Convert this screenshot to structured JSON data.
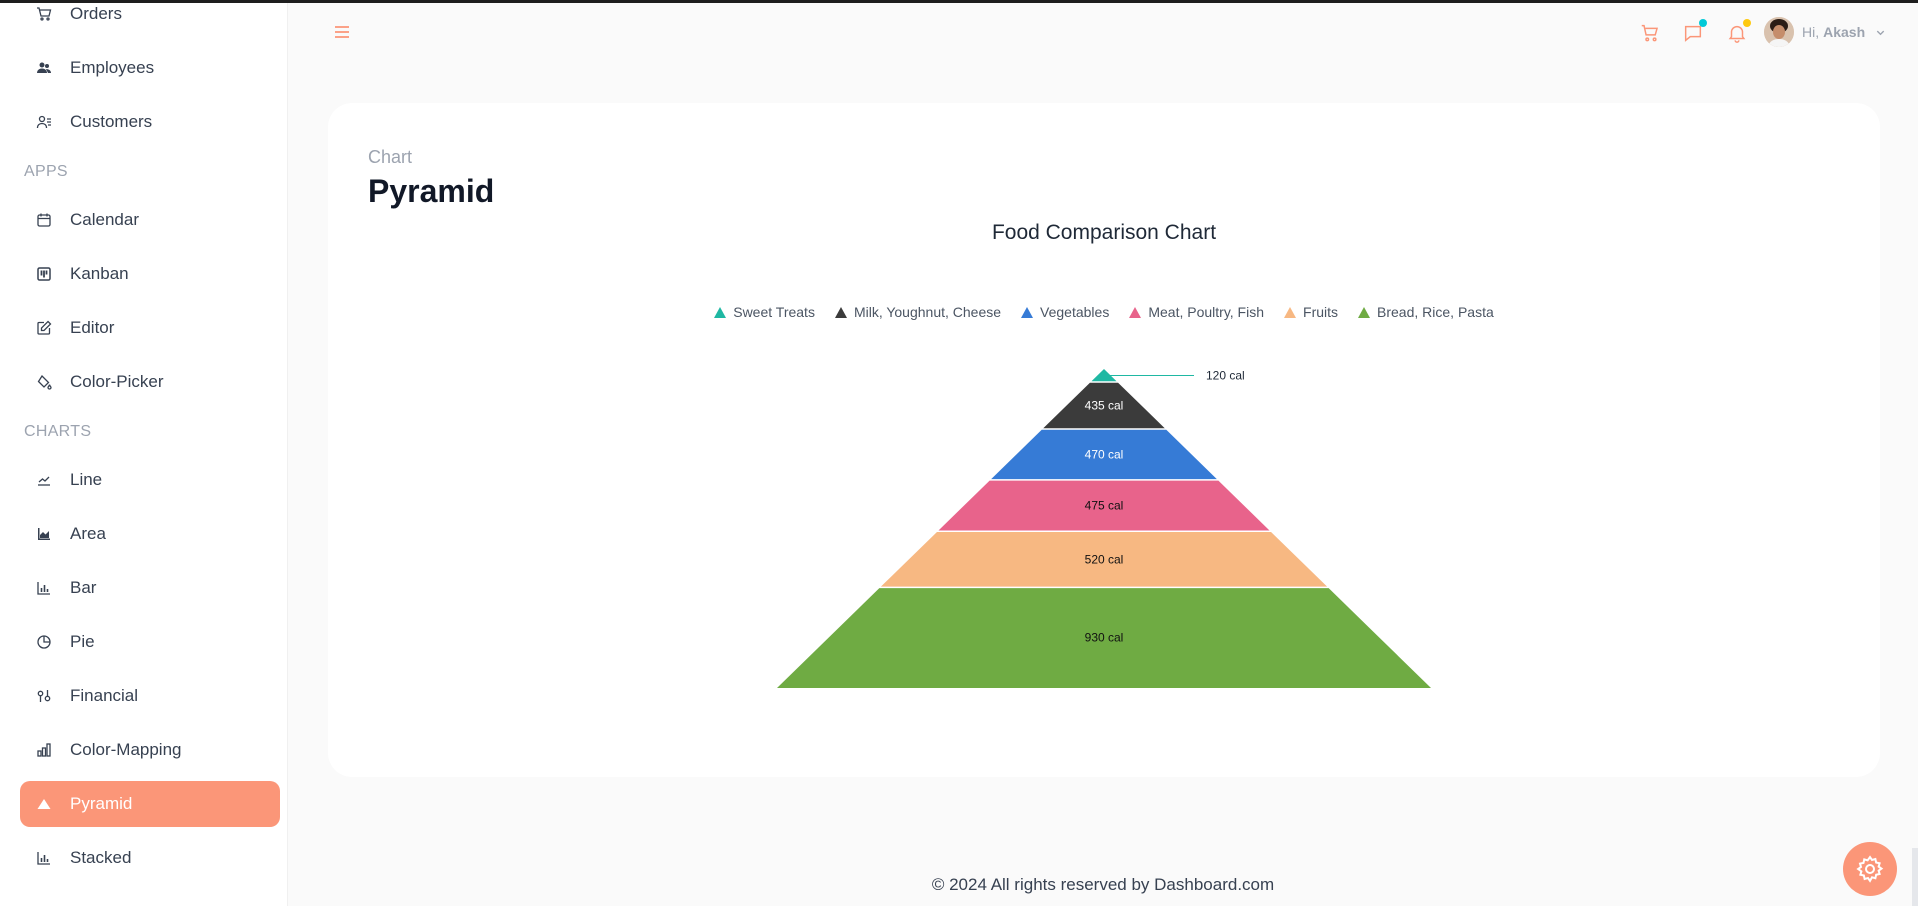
{
  "sidebar": {
    "items_top": [
      {
        "name": "orders",
        "label": "Orders",
        "icon": "cart-icon"
      },
      {
        "name": "employees",
        "label": "Employees",
        "icon": "employees-icon"
      },
      {
        "name": "customers",
        "label": "Customers",
        "icon": "customers-icon"
      }
    ],
    "apps_heading": "APPS",
    "apps": [
      {
        "name": "calendar",
        "label": "Calendar",
        "icon": "calendar-icon"
      },
      {
        "name": "kanban",
        "label": "Kanban",
        "icon": "kanban-icon"
      },
      {
        "name": "editor",
        "label": "Editor",
        "icon": "edit-icon"
      },
      {
        "name": "color-picker",
        "label": "Color-Picker",
        "icon": "paint-bucket-icon"
      }
    ],
    "charts_heading": "CHARTS",
    "charts": [
      {
        "name": "line",
        "label": "Line",
        "icon": "line-chart-icon"
      },
      {
        "name": "area",
        "label": "Area",
        "icon": "area-chart-icon"
      },
      {
        "name": "bar",
        "label": "Bar",
        "icon": "bar-chart-icon"
      },
      {
        "name": "pie",
        "label": "Pie",
        "icon": "pie-chart-icon"
      },
      {
        "name": "financial",
        "label": "Financial",
        "icon": "financial-icon"
      },
      {
        "name": "color-mapping",
        "label": "Color-Mapping",
        "icon": "color-mapping-icon"
      },
      {
        "name": "pyramid",
        "label": "Pyramid",
        "icon": "pyramid-icon",
        "active": true
      },
      {
        "name": "stacked",
        "label": "Stacked",
        "icon": "stacked-chart-icon"
      }
    ]
  },
  "header": {
    "user_greeting": "Hi,",
    "user_name": "Akash",
    "icons": [
      "menu-icon",
      "cart-icon",
      "chat-icon",
      "bell-icon",
      "chevron-down-icon"
    ]
  },
  "page": {
    "crumb": "Chart",
    "title": "Pyramid"
  },
  "chart_data": {
    "type": "pyramid",
    "title": "Food Comparison Chart",
    "legend_position": "top",
    "series": [
      {
        "name": "Sweet Treats",
        "value": 120,
        "label": "120 cal",
        "color": "#1fb8a3"
      },
      {
        "name": "Milk, Youghnut, Cheese",
        "value": 435,
        "label": "435 cal",
        "color": "#3b3b3b"
      },
      {
        "name": "Vegetables",
        "value": 470,
        "label": "470 cal",
        "color": "#367bd6"
      },
      {
        "name": "Meat, Poultry, Fish",
        "value": 475,
        "label": "475 cal",
        "color": "#e8638b"
      },
      {
        "name": "Fruits",
        "value": 520,
        "label": "520 cal",
        "color": "#f7b882"
      },
      {
        "name": "Bread, Rice, Pasta",
        "value": 930,
        "label": "930 cal",
        "color": "#6fab43"
      }
    ]
  },
  "footer": {
    "text": "© 2024 All rights reserved by Dashboard.com"
  },
  "colors": {
    "accent": "#fb9678",
    "chat_dot": "#03c9d7",
    "bell_dot": "#fec90f"
  }
}
